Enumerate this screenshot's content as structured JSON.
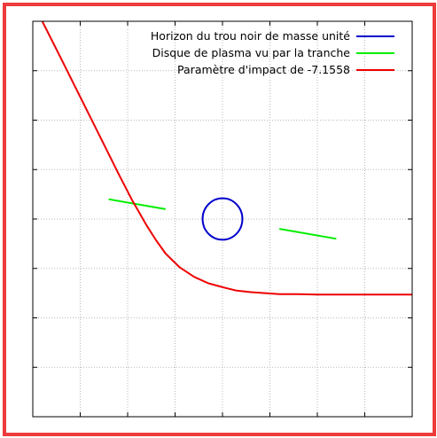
{
  "frame_color": "#ee3b3b",
  "chart_data": {
    "type": "line",
    "title": "",
    "xlabel": "",
    "ylabel": "",
    "xlim": [
      -4,
      4
    ],
    "ylim": [
      -4,
      4
    ],
    "grid": true,
    "legend_position": "top-right",
    "tick_labels_visible": false,
    "series": [
      {
        "name": "Horizon du trou noir de masse unité",
        "color": "#0000cc",
        "shape": "circle",
        "center": [
          0,
          0
        ],
        "radius": 0.42
      },
      {
        "name": "Disque de plasma vu par la tranche",
        "color": "#00ee00",
        "segments": [
          [
            [
              -2.4,
              0.4
            ],
            [
              -1.2,
              0.2
            ]
          ],
          [
            [
              1.2,
              -0.2
            ],
            [
              2.4,
              -0.4
            ]
          ]
        ]
      },
      {
        "name": "Paramètre d'impact de -7.1558",
        "color": "#ee0000",
        "x": [
          -3.8,
          -3.4,
          -3.0,
          -2.6,
          -2.2,
          -1.9,
          -1.6,
          -1.4,
          -1.2,
          -0.9,
          -0.6,
          -0.3,
          0.0,
          0.3,
          0.6,
          0.9,
          1.2,
          1.6,
          2.0,
          2.5,
          3.0,
          3.5,
          4.0
        ],
        "y": [
          4.0,
          3.24,
          2.47,
          1.7,
          0.93,
          0.37,
          -0.13,
          -0.43,
          -0.7,
          -0.98,
          -1.17,
          -1.3,
          -1.38,
          -1.45,
          -1.48,
          -1.5,
          -1.52,
          -1.52,
          -1.53,
          -1.53,
          -1.53,
          -1.53,
          -1.53
        ]
      }
    ]
  }
}
